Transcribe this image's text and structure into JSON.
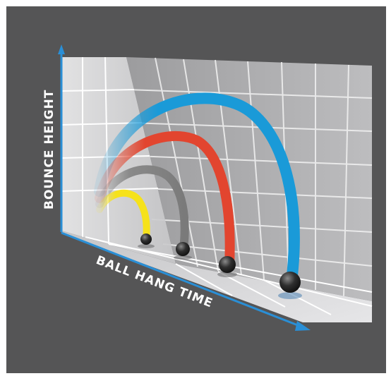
{
  "figure": {
    "y_axis_label": "BOUNCE HEIGHT",
    "x_axis_label": "BALL HANG TIME"
  },
  "colors": {
    "background": "#555556",
    "axis_arrow": "#2a8fd6",
    "grid_line": "#ffffff",
    "arc_yellow": "#f6e21a",
    "arc_gray": "#8a8a8a",
    "arc_red": "#e2452f",
    "arc_blue": "#1a9ad8",
    "ball": "#2e2e2e"
  },
  "arcs": [
    {
      "name": "yellow-arc",
      "color": "arc_yellow",
      "relative_height": 0.25
    },
    {
      "name": "gray-arc",
      "color": "arc_gray",
      "relative_height": 0.45
    },
    {
      "name": "red-arc",
      "color": "arc_red",
      "relative_height": 0.65
    },
    {
      "name": "blue-arc",
      "color": "arc_blue",
      "relative_height": 1.0
    }
  ]
}
